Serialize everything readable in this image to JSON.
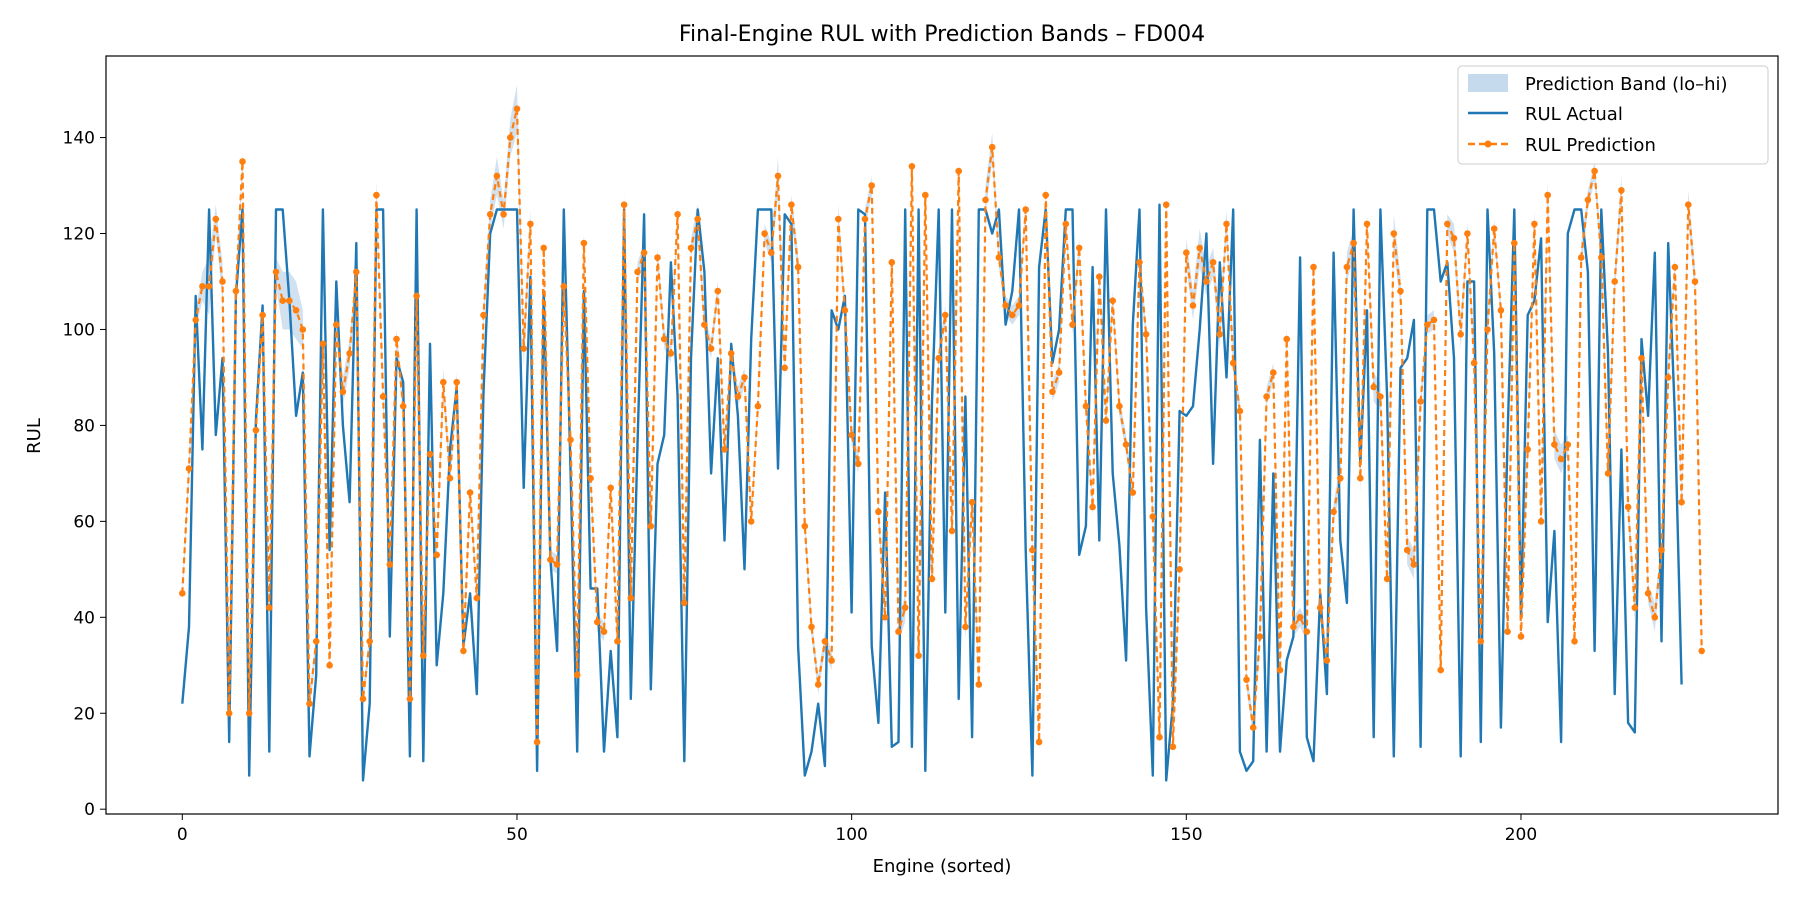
{
  "chart_data": {
    "type": "line",
    "title": "Final-Engine RUL with Prediction Bands – FD004",
    "xlabel": "Engine (sorted)",
    "ylabel": "RUL",
    "xlim": [
      -11.4,
      238.4
    ],
    "ylim": [
      -1.0,
      157.0
    ],
    "xticks": [
      0,
      50,
      100,
      150,
      200
    ],
    "yticks": [
      0,
      20,
      40,
      60,
      80,
      100,
      120,
      140
    ],
    "grid": false,
    "legend": {
      "placement": "top-right",
      "entries": [
        "Prediction Band (lo–hi)",
        "RUL Actual",
        "RUL Prediction"
      ]
    },
    "colors": {
      "actual": "#1f77b4",
      "prediction": "#ff7f0e",
      "band": "#c5daec"
    },
    "band_halfwidth": [
      1.5,
      2,
      2,
      3,
      6,
      3,
      4,
      2,
      2,
      2,
      3,
      2,
      2,
      2,
      3,
      6,
      6,
      6,
      4,
      2,
      2,
      2,
      2,
      3,
      3,
      3,
      2,
      2,
      2,
      3,
      2,
      3,
      2,
      2,
      2,
      3,
      2,
      2,
      2,
      3,
      2,
      2,
      2,
      2,
      2,
      2,
      3,
      4,
      3,
      4,
      5,
      4,
      3,
      2,
      2,
      2,
      2,
      2,
      2,
      2,
      2,
      2,
      2,
      2,
      2,
      2,
      2,
      2,
      2,
      2,
      2,
      2,
      2,
      2,
      2,
      2,
      2,
      3,
      2,
      2,
      2,
      2,
      2,
      2,
      2,
      2,
      2,
      2,
      2,
      4,
      2,
      2,
      3,
      2,
      2,
      2,
      2,
      2,
      3,
      2,
      2,
      2,
      2,
      2,
      2,
      2,
      2,
      2,
      3,
      2,
      2,
      2,
      2,
      2,
      2,
      2,
      2,
      3,
      2,
      2,
      3,
      3,
      2,
      2,
      2,
      2,
      2,
      2,
      2,
      2,
      2,
      2,
      2,
      2,
      2,
      2,
      2,
      2,
      2,
      2,
      2,
      2,
      2,
      2,
      2,
      2,
      2,
      2,
      2,
      2,
      3,
      3,
      4,
      3,
      3,
      3,
      3,
      2,
      2,
      2,
      2,
      2,
      2,
      2,
      3,
      3,
      2,
      2,
      2,
      2,
      2,
      2,
      2,
      3,
      3,
      3,
      3,
      2,
      3,
      3,
      2,
      4,
      3,
      3,
      3,
      2,
      2,
      2,
      2,
      2,
      3,
      3,
      2,
      2,
      2,
      2,
      2,
      2,
      2,
      3,
      2,
      3,
      3,
      3,
      3,
      3,
      3,
      2,
      2,
      3,
      2,
      2,
      3,
      3,
      3,
      3,
      3,
      3,
      3,
      2,
      3,
      2,
      2,
      2,
      3,
      3,
      3,
      3,
      2
    ],
    "series": [
      {
        "name": "RUL Actual",
        "values": [
          22,
          38,
          107,
          75,
          125,
          78,
          94,
          14,
          107,
          125,
          7,
          81,
          105,
          12,
          125,
          125,
          106,
          82,
          91,
          11,
          28,
          125,
          54,
          110,
          80,
          64,
          118,
          6,
          22,
          125,
          125,
          36,
          94,
          89,
          11,
          125,
          10,
          97,
          30,
          45,
          75,
          88,
          34,
          45,
          24,
          87,
          120,
          125,
          125,
          125,
          125,
          67,
          111,
          8,
          108,
          52,
          33,
          125,
          71,
          12,
          108,
          46,
          46,
          12,
          33,
          15,
          125,
          23,
          76,
          124,
          25,
          72,
          78,
          114,
          86,
          10,
          94,
          125,
          112,
          70,
          94,
          56,
          97,
          82,
          50,
          98,
          125,
          125,
          125,
          71,
          124,
          122,
          34,
          7,
          12,
          22,
          9,
          104,
          100,
          107,
          41,
          125,
          124,
          34,
          18,
          66,
          13,
          14,
          125,
          13,
          125,
          8,
          85,
          125,
          41,
          125,
          23,
          86,
          15,
          125,
          125,
          120,
          125,
          101,
          108,
          125,
          54,
          7,
          113,
          125,
          93,
          100,
          125,
          125,
          53,
          59,
          113,
          56,
          125,
          70,
          55,
          31,
          101,
          125,
          42,
          7,
          126,
          6,
          22,
          83,
          82,
          84,
          100,
          120,
          72,
          114,
          90,
          125,
          12,
          8,
          10,
          77,
          12,
          70,
          12,
          31,
          36,
          115,
          15,
          10,
          45,
          24,
          116,
          56,
          43,
          125,
          72,
          104,
          15,
          125,
          86,
          11,
          92,
          94,
          102,
          13,
          125,
          125,
          110,
          114,
          94,
          11,
          110,
          110,
          14,
          125,
          95,
          17,
          78,
          125,
          40,
          103,
          106,
          119,
          39,
          58,
          14,
          120,
          125,
          125,
          112,
          33,
          125,
          95,
          24,
          75,
          18,
          16,
          98,
          82,
          116,
          35,
          118,
          82,
          26
        ],
        "color": "#1f77b4"
      },
      {
        "name": "RUL Prediction",
        "values": [
          45,
          71,
          102,
          109,
          109,
          123,
          110,
          20,
          108,
          135,
          20,
          79,
          103,
          42,
          112,
          106,
          106,
          104,
          100,
          22,
          35,
          97,
          30,
          101,
          87,
          95,
          112,
          23,
          35,
          128,
          86,
          51,
          98,
          84,
          23,
          107,
          32,
          74,
          53,
          89,
          69,
          89,
          33,
          66,
          44,
          103,
          124,
          132,
          124,
          140,
          146,
          96,
          122,
          14,
          117,
          52,
          51,
          109,
          77,
          28,
          118,
          69,
          39,
          37,
          67,
          35,
          126,
          44,
          112,
          116,
          59,
          115,
          98,
          95,
          124,
          43,
          117,
          123,
          101,
          96,
          108,
          75,
          95,
          86,
          90,
          60,
          84,
          120,
          116,
          132,
          92,
          126,
          113,
          59,
          38,
          26,
          35,
          31,
          123,
          104,
          78,
          72,
          123,
          130,
          62,
          40,
          114,
          37,
          42,
          134,
          32,
          128,
          48,
          94,
          103,
          58,
          133,
          38,
          64,
          26,
          127,
          138,
          115,
          105,
          103,
          105,
          125,
          54,
          14,
          128,
          87,
          91,
          122,
          101,
          117,
          84,
          63,
          111,
          81,
          106,
          84,
          76,
          66,
          114,
          99,
          61,
          15,
          126,
          13,
          50,
          116,
          105,
          117,
          110,
          114,
          99,
          122,
          93,
          83,
          27,
          17,
          36,
          86,
          91,
          29,
          98,
          38,
          40,
          37,
          113,
          42,
          31,
          62,
          69,
          113,
          118,
          69,
          122,
          88,
          86,
          48,
          120,
          108,
          54,
          51,
          85,
          101,
          102,
          29,
          122,
          119,
          99,
          120,
          93,
          35,
          100,
          121,
          104,
          37,
          118,
          36,
          75,
          122,
          60,
          128,
          76,
          73,
          76,
          35,
          115,
          127,
          133,
          115,
          70,
          110,
          129,
          63,
          42,
          94,
          45,
          40,
          54,
          90,
          113,
          64,
          126,
          110,
          33
        ],
        "color": "#ff7f0e"
      }
    ]
  }
}
